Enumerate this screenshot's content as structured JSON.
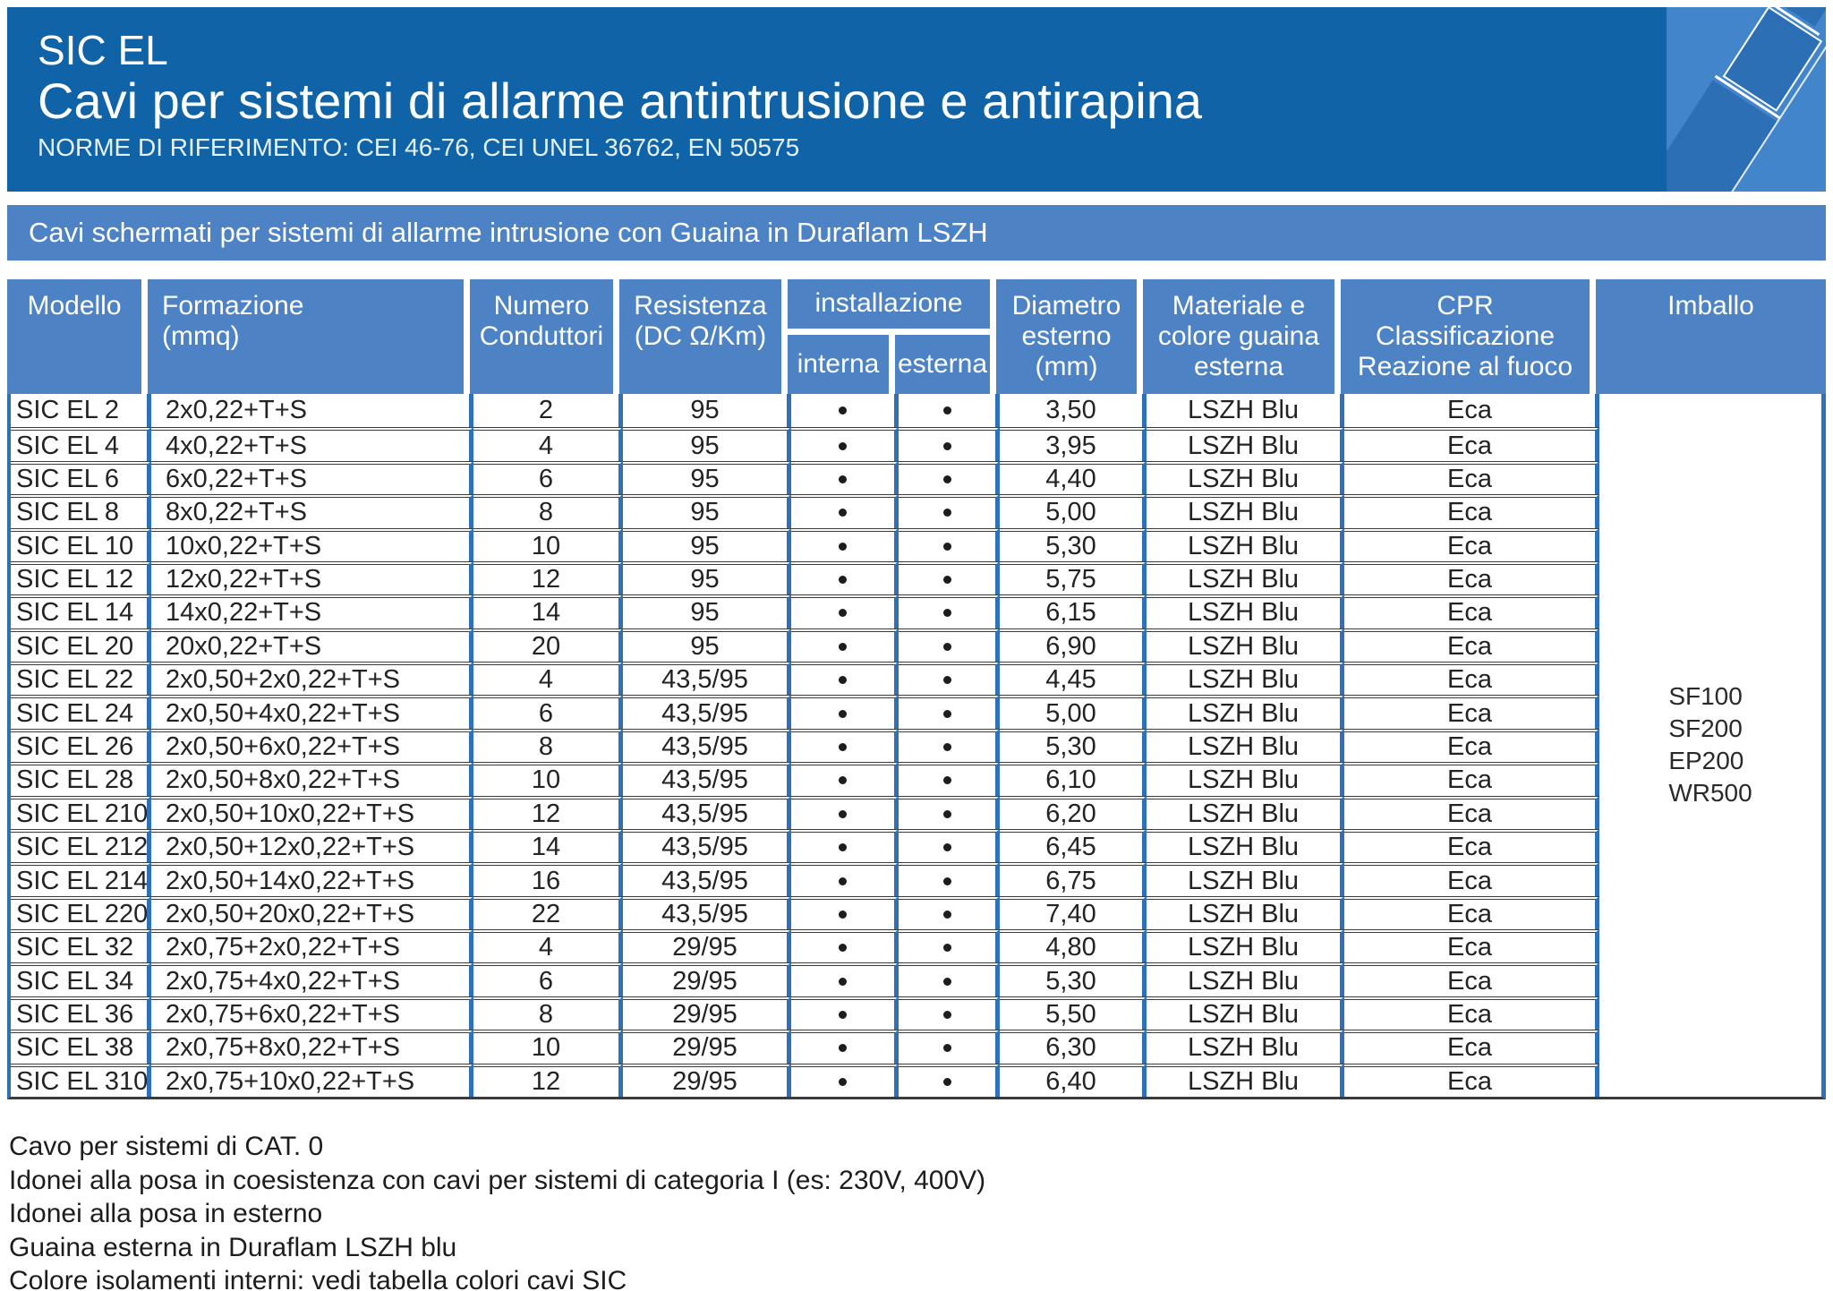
{
  "header": {
    "product": "SIC EL",
    "title": "Cavi per sistemi di allarme antintrusione e antirapina",
    "norms": "NORME DI RIFERIMENTO: CEI 46-76, CEI UNEL 36762, EN 50575"
  },
  "banner": "Cavi schermati per sistemi di allarme intrusione con Guaina in Duraflam LSZH",
  "table": {
    "columns": {
      "modello": "Modello",
      "formazione": "Formazione\n(mmq)",
      "conduttori": "Numero\nConduttori",
      "resistenza": "Resistenza\n(DC Ω/Km)",
      "installazione": "installazione",
      "interna": "interna",
      "esterna": "esterna",
      "diametro": "Diametro\nesterno\n(mm)",
      "guaina": "Materiale e\ncolore guaina\nesterna",
      "cpr": "CPR\nClassificazione\nReazione al fuoco",
      "imballo": "Imballo"
    },
    "rows": [
      {
        "model": "SIC EL 2",
        "formation": "2x0,22+T+S",
        "conductors": "2",
        "resistance": "95",
        "internal": "•",
        "external": "•",
        "diameter": "3,50",
        "sheath": "LSZH Blu",
        "cpr": "Eca"
      },
      {
        "model": "SIC EL 4",
        "formation": "4x0,22+T+S",
        "conductors": "4",
        "resistance": "95",
        "internal": "•",
        "external": "•",
        "diameter": "3,95",
        "sheath": "LSZH Blu",
        "cpr": "Eca"
      },
      {
        "model": "SIC EL 6",
        "formation": "6x0,22+T+S",
        "conductors": "6",
        "resistance": "95",
        "internal": "•",
        "external": "•",
        "diameter": "4,40",
        "sheath": "LSZH Blu",
        "cpr": "Eca"
      },
      {
        "model": "SIC EL 8",
        "formation": "8x0,22+T+S",
        "conductors": "8",
        "resistance": "95",
        "internal": "•",
        "external": "•",
        "diameter": "5,00",
        "sheath": "LSZH Blu",
        "cpr": "Eca"
      },
      {
        "model": "SIC EL 10",
        "formation": "10x0,22+T+S",
        "conductors": "10",
        "resistance": "95",
        "internal": "•",
        "external": "•",
        "diameter": "5,30",
        "sheath": "LSZH Blu",
        "cpr": "Eca"
      },
      {
        "model": "SIC EL 12",
        "formation": "12x0,22+T+S",
        "conductors": "12",
        "resistance": "95",
        "internal": "•",
        "external": "•",
        "diameter": "5,75",
        "sheath": "LSZH Blu",
        "cpr": "Eca"
      },
      {
        "model": "SIC EL 14",
        "formation": "14x0,22+T+S",
        "conductors": "14",
        "resistance": "95",
        "internal": "•",
        "external": "•",
        "diameter": "6,15",
        "sheath": "LSZH Blu",
        "cpr": "Eca"
      },
      {
        "model": "SIC EL 20",
        "formation": "20x0,22+T+S",
        "conductors": "20",
        "resistance": "95",
        "internal": "•",
        "external": "•",
        "diameter": "6,90",
        "sheath": "LSZH Blu",
        "cpr": "Eca"
      },
      {
        "model": "SIC EL 22",
        "formation": "2x0,50+2x0,22+T+S",
        "conductors": "4",
        "resistance": "43,5/95",
        "internal": "•",
        "external": "•",
        "diameter": "4,45",
        "sheath": "LSZH Blu",
        "cpr": "Eca"
      },
      {
        "model": "SIC EL 24",
        "formation": "2x0,50+4x0,22+T+S",
        "conductors": "6",
        "resistance": "43,5/95",
        "internal": "•",
        "external": "•",
        "diameter": "5,00",
        "sheath": "LSZH Blu",
        "cpr": "Eca"
      },
      {
        "model": "SIC EL 26",
        "formation": "2x0,50+6x0,22+T+S",
        "conductors": "8",
        "resistance": "43,5/95",
        "internal": "•",
        "external": "•",
        "diameter": "5,30",
        "sheath": "LSZH Blu",
        "cpr": "Eca"
      },
      {
        "model": "SIC EL 28",
        "formation": "2x0,50+8x0,22+T+S",
        "conductors": "10",
        "resistance": "43,5/95",
        "internal": "•",
        "external": "•",
        "diameter": "6,10",
        "sheath": "LSZH Blu",
        "cpr": "Eca"
      },
      {
        "model": "SIC EL 210",
        "formation": "2x0,50+10x0,22+T+S",
        "conductors": "12",
        "resistance": "43,5/95",
        "internal": "•",
        "external": "•",
        "diameter": "6,20",
        "sheath": "LSZH Blu",
        "cpr": "Eca"
      },
      {
        "model": "SIC EL 212",
        "formation": "2x0,50+12x0,22+T+S",
        "conductors": "14",
        "resistance": "43,5/95",
        "internal": "•",
        "external": "•",
        "diameter": "6,45",
        "sheath": "LSZH Blu",
        "cpr": "Eca"
      },
      {
        "model": "SIC EL 214",
        "formation": "2x0,50+14x0,22+T+S",
        "conductors": "16",
        "resistance": "43,5/95",
        "internal": "•",
        "external": "•",
        "diameter": "6,75",
        "sheath": "LSZH Blu",
        "cpr": "Eca"
      },
      {
        "model": "SIC EL 220",
        "formation": "2x0,50+20x0,22+T+S",
        "conductors": "22",
        "resistance": "43,5/95",
        "internal": "•",
        "external": "•",
        "diameter": "7,40",
        "sheath": "LSZH Blu",
        "cpr": "Eca"
      },
      {
        "model": "SIC EL 32",
        "formation": "2x0,75+2x0,22+T+S",
        "conductors": "4",
        "resistance": "29/95",
        "internal": "•",
        "external": "•",
        "diameter": "4,80",
        "sheath": "LSZH Blu",
        "cpr": "Eca"
      },
      {
        "model": "SIC EL 34",
        "formation": "2x0,75+4x0,22+T+S",
        "conductors": "6",
        "resistance": "29/95",
        "internal": "•",
        "external": "•",
        "diameter": "5,30",
        "sheath": "LSZH Blu",
        "cpr": "Eca"
      },
      {
        "model": "SIC EL 36",
        "formation": "2x0,75+6x0,22+T+S",
        "conductors": "8",
        "resistance": "29/95",
        "internal": "•",
        "external": "•",
        "diameter": "5,50",
        "sheath": "LSZH Blu",
        "cpr": "Eca"
      },
      {
        "model": "SIC EL 38",
        "formation": "2x0,75+8x0,22+T+S",
        "conductors": "10",
        "resistance": "29/95",
        "internal": "•",
        "external": "•",
        "diameter": "6,30",
        "sheath": "LSZH Blu",
        "cpr": "Eca"
      },
      {
        "model": "SIC EL 310",
        "formation": "2x0,75+10x0,22+T+S",
        "conductors": "12",
        "resistance": "29/95",
        "internal": "•",
        "external": "•",
        "diameter": "6,40",
        "sheath": "LSZH Blu",
        "cpr": "Eca"
      }
    ],
    "imballo_options": [
      "SF100",
      "SF200",
      "EP200",
      "WR500"
    ]
  },
  "notes": [
    "Cavo per sistemi di CAT. 0",
    "Idonei alla posa in coesistenza con cavi per sistemi di categoria I (es: 230V, 400V)",
    "Idonei alla posa in esterno",
    "Guaina esterna in Duraflam LSZH blu",
    "Colore isolamenti interni: vedi tabella colori cavi SIC"
  ],
  "colors": {
    "header_blue": "#1063A6",
    "panel_blue": "#4D82C4",
    "grid_blue": "#2F71B9"
  }
}
